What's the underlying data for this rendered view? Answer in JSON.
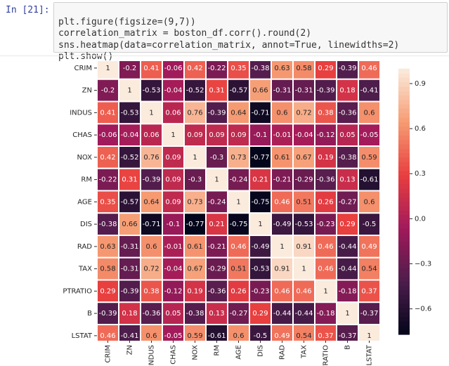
{
  "cell": {
    "prompt": "In [21]:",
    "code": [
      "plt.figure(figsize=(9,7))",
      "correlation_matrix = boston_df.corr().round(2)",
      "sns.heatmap(data=correlation_matrix, annot=True, linewidths=2)",
      "plt.show()"
    ]
  },
  "chart_data": {
    "type": "heatmap",
    "x": [
      "CRIM",
      "ZN",
      "INDUS",
      "CHAS",
      "NOX",
      "RM",
      "AGE",
      "DIS",
      "RAD",
      "TAX",
      "PTRATIO",
      "B",
      "LSTAT"
    ],
    "y": [
      "CRIM",
      "ZN",
      "INDUS",
      "CHAS",
      "NOX",
      "RM",
      "AGE",
      "DIS",
      "RAD",
      "TAX",
      "PTRATIO",
      "B",
      "LSTAT"
    ],
    "values": [
      [
        1,
        -0.2,
        0.41,
        -0.06,
        0.42,
        -0.22,
        0.35,
        -0.38,
        0.63,
        0.58,
        0.29,
        -0.39,
        0.46
      ],
      [
        -0.2,
        1,
        -0.53,
        -0.04,
        -0.52,
        0.31,
        -0.57,
        0.66,
        -0.31,
        -0.31,
        -0.39,
        0.18,
        -0.41
      ],
      [
        0.41,
        -0.53,
        1,
        0.06,
        0.76,
        -0.39,
        0.64,
        -0.71,
        0.6,
        0.72,
        0.38,
        -0.36,
        0.6
      ],
      [
        -0.06,
        -0.04,
        0.06,
        1,
        0.09,
        0.09,
        0.09,
        -0.1,
        -0.01,
        -0.04,
        -0.12,
        0.05,
        -0.05
      ],
      [
        0.42,
        -0.52,
        0.76,
        0.09,
        1,
        -0.3,
        0.73,
        -0.77,
        0.61,
        0.67,
        0.19,
        -0.38,
        0.59
      ],
      [
        -0.22,
        0.31,
        -0.39,
        0.09,
        -0.3,
        1,
        -0.24,
        0.21,
        -0.21,
        -0.29,
        -0.36,
        0.13,
        -0.61
      ],
      [
        0.35,
        -0.57,
        0.64,
        0.09,
        0.73,
        -0.24,
        1,
        -0.75,
        0.46,
        0.51,
        0.26,
        -0.27,
        0.6
      ],
      [
        -0.38,
        0.66,
        -0.71,
        -0.1,
        -0.77,
        0.21,
        -0.75,
        1,
        -0.49,
        -0.53,
        -0.23,
        0.29,
        -0.5
      ],
      [
        0.63,
        -0.31,
        0.6,
        -0.01,
        0.61,
        -0.21,
        0.46,
        -0.49,
        1,
        0.91,
        0.46,
        -0.44,
        0.49
      ],
      [
        0.58,
        -0.31,
        0.72,
        -0.04,
        0.67,
        -0.29,
        0.51,
        -0.53,
        0.91,
        1,
        0.46,
        -0.44,
        0.54
      ],
      [
        0.29,
        -0.39,
        0.38,
        -0.12,
        0.19,
        -0.36,
        0.26,
        -0.23,
        0.46,
        0.46,
        1,
        -0.18,
        0.37
      ],
      [
        -0.39,
        0.18,
        -0.36,
        0.05,
        -0.38,
        0.13,
        -0.27,
        0.29,
        -0.44,
        -0.44,
        -0.18,
        1,
        -0.37
      ],
      [
        0.46,
        -0.41,
        0.6,
        -0.05,
        0.59,
        -0.61,
        0.6,
        -0.5,
        0.49,
        0.54,
        0.37,
        -0.37,
        1
      ]
    ],
    "clim": [
      -0.77,
      1
    ],
    "cticks": [
      0.9,
      0.6,
      0.3,
      {
        "value": 0,
        "label": "0.0"
      },
      {
        "value": -0.3,
        "label": "−0.3"
      },
      {
        "value": -0.6,
        "label": "−0.6"
      }
    ],
    "colormap": [
      "#03051a",
      "#4c1d4b",
      "#a11a5b",
      "#e83f3f",
      "#f69c73",
      "#faebdd"
    ]
  }
}
